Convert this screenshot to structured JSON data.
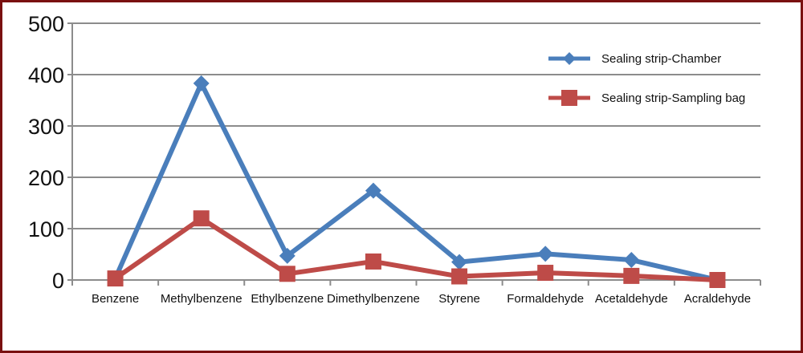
{
  "chart_data": {
    "type": "line",
    "title": "",
    "xlabel": "",
    "ylabel": "",
    "ylim": [
      0,
      500
    ],
    "yticks": [
      0,
      100,
      200,
      300,
      400,
      500
    ],
    "grid": true,
    "legend_position": "top-right",
    "categories": [
      "Benzene",
      "Methylbenzene",
      "Ethylbenzene",
      "Dimethylbenzene",
      "Styrene",
      "Formaldehyde",
      "Acetaldehyde",
      "Acraldehyde"
    ],
    "series": [
      {
        "name": "Sealing strip-Chamber",
        "color": "#4a7ebb",
        "marker": "diamond",
        "values": [
          3,
          383,
          47,
          174,
          35,
          51,
          39,
          0
        ]
      },
      {
        "name": "Sealing strip-Sampling bag",
        "color": "#be4b48",
        "marker": "square",
        "values": [
          3,
          120,
          12,
          36,
          7,
          14,
          8,
          0
        ]
      }
    ]
  }
}
